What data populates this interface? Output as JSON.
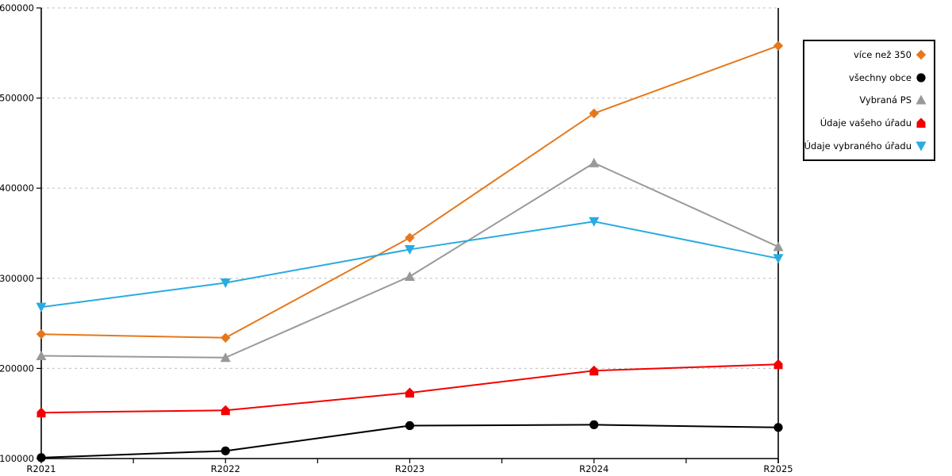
{
  "chart_data": {
    "type": "line",
    "categories": [
      "R2021",
      "R2022",
      "R2023",
      "R2024",
      "R2025"
    ],
    "series": [
      {
        "name": "více než 350",
        "color": "#E6781B",
        "marker": "diamond",
        "values": [
          238000,
          234000,
          345000,
          483000,
          558000
        ]
      },
      {
        "name": "všechny obce",
        "color": "#000000",
        "marker": "circle",
        "values": [
          101000,
          108500,
          136500,
          137500,
          134500
        ]
      },
      {
        "name": "Vybraná PS",
        "color": "#999999",
        "marker": "triangle-up",
        "values": [
          214000,
          212000,
          302000,
          428000,
          335000
        ]
      },
      {
        "name": "Údaje vašeho úřadu",
        "color": "#F40000",
        "marker": "pentagon-up",
        "values": [
          151000,
          153500,
          173000,
          197500,
          204500
        ]
      },
      {
        "name": "Údaje vybraného úřadu",
        "color": "#29ABE2",
        "marker": "triangle-down",
        "values": [
          268000,
          295000,
          332000,
          363000,
          322000
        ]
      }
    ],
    "title": "",
    "xlabel": "",
    "ylabel": "",
    "ylim": [
      100000,
      600000
    ],
    "ytick_step": 100000,
    "ytick_labels": [
      "100000",
      "200000",
      "300000",
      "400000",
      "500000",
      "600000"
    ],
    "grid": "horizontal-dashed",
    "legend_position": "right-outside"
  },
  "colors": {
    "background": "#FFFFFF",
    "grid": "#C9C9C9",
    "axis": "#000000",
    "text": "#000000",
    "legend_border": "#000000"
  }
}
